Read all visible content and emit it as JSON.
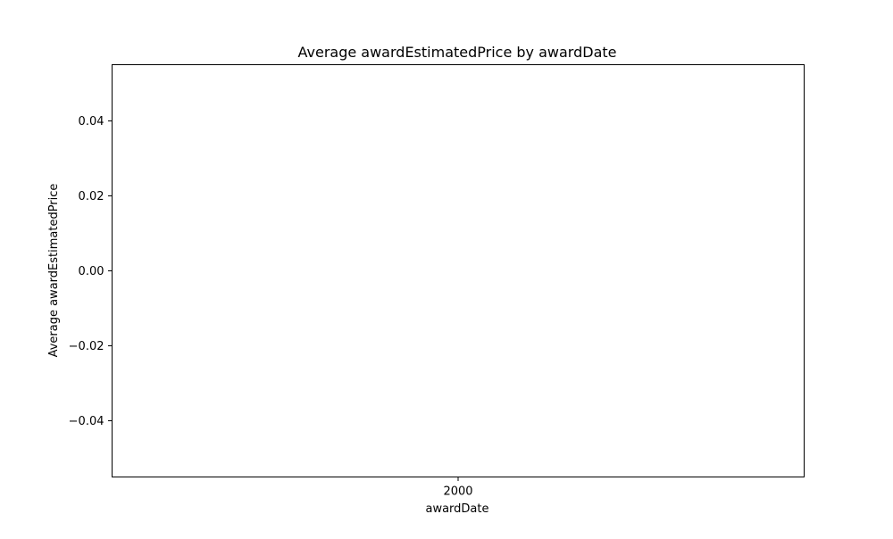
{
  "chart_data": {
    "type": "line",
    "title": "Average awardEstimatedPrice by awardDate",
    "xlabel": "awardDate",
    "ylabel": "Average awardEstimatedPrice",
    "x_categories": [
      "2000"
    ],
    "series": [
      {
        "x": [],
        "y": []
      }
    ],
    "ylim": [
      -0.055,
      0.055
    ],
    "yticks": [
      -0.04,
      -0.02,
      0.0,
      0.02,
      0.04
    ],
    "ytick_labels": [
      "−0.04",
      "−0.02",
      "0.00",
      "0.02",
      "0.04"
    ],
    "xticks": [
      "2000"
    ],
    "grid": false,
    "legend": "none",
    "colors": {
      "axis": "#000000",
      "background": "#ffffff"
    }
  }
}
